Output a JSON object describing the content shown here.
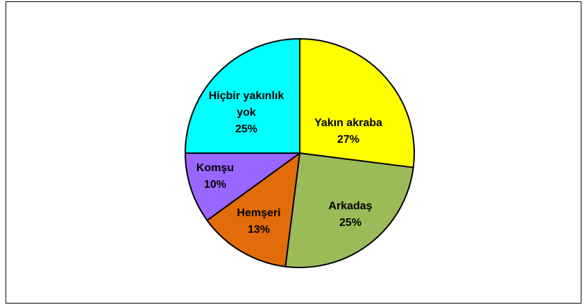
{
  "chart_data": {
    "type": "pie",
    "categories": [
      "Yakın akraba",
      "Arkadaş",
      "Hemşeri",
      "Komşu",
      "Hiçbir yakınlık yok"
    ],
    "values": [
      27,
      25,
      13,
      10,
      25
    ],
    "value_labels": [
      "27%",
      "25%",
      "13%",
      "10%",
      "25%"
    ],
    "colors": [
      "#ffff00",
      "#9bbb59",
      "#e36c0a",
      "#9966ff",
      "#00ffff"
    ]
  }
}
